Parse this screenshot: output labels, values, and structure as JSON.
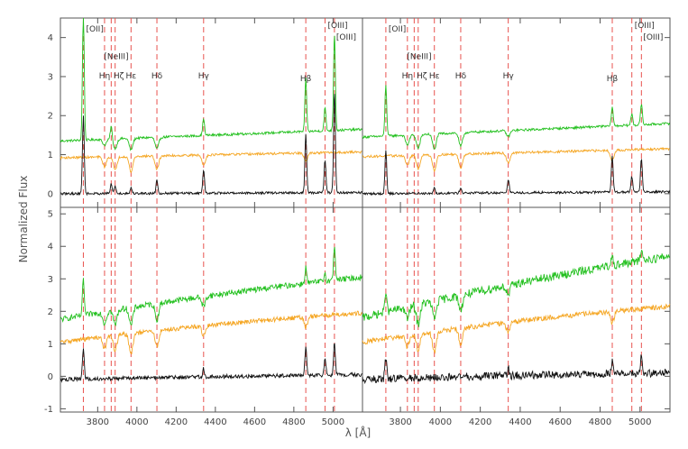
{
  "chart_data": {
    "type": "line",
    "xlabel": "λ [Å]",
    "ylabel": "Normalized Flux",
    "xlim": [
      3610,
      5150
    ],
    "x_ticks": [
      3800,
      4000,
      4200,
      4400,
      4600,
      4800,
      5000
    ],
    "top_row_ylim": [
      -0.35,
      4.5
    ],
    "top_row_y_ticks": [
      0,
      1,
      2,
      3,
      4
    ],
    "bottom_row_ylim": [
      -1.1,
      5.2
    ],
    "bottom_row_y_ticks": [
      -1,
      0,
      1,
      2,
      3,
      4,
      5
    ],
    "colors": {
      "series_green": "#22c01e",
      "series_orange": "#f5a623",
      "series_black": "#111111",
      "emission_line_markers": "#e8534f",
      "axes": "#555555"
    },
    "emission_lines": [
      {
        "label": "[OII]",
        "wavelength": 3727
      },
      {
        "label": "Hη",
        "wavelength": 3835
      },
      {
        "label": "[NeIII]",
        "wavelength": 3869
      },
      {
        "label": "Hζ",
        "wavelength": 3889
      },
      {
        "label": "Hε",
        "wavelength": 3970
      },
      {
        "label": "Hδ",
        "wavelength": 4102
      },
      {
        "label": "Hγ",
        "wavelength": 4340
      },
      {
        "label": "Hβ",
        "wavelength": 4861
      },
      {
        "label": "[OIII]",
        "wavelength": 4959
      },
      {
        "label": "[OIII]",
        "wavelength": 5007
      }
    ],
    "panels": [
      {
        "position": "top-left",
        "series": [
          {
            "color": "#22c01e",
            "baseline": 1.35,
            "slope": 0.3,
            "curve": 0.0,
            "noise": 0.03,
            "emission": {
              "3727": 3.3,
              "3869": 0.35,
              "4340": 0.45,
              "4861": 1.35,
              "4959": 0.6,
              "5007": 2.5
            },
            "absorption": {
              "3835": 0.15,
              "3889": 0.25,
              "3970": 0.3,
              "4102": 0.3
            }
          },
          {
            "color": "#f5a623",
            "baseline": 0.92,
            "slope": 0.15,
            "curve": 0.0,
            "noise": 0.03,
            "emission": {},
            "absorption": {
              "3835": 0.25,
              "3889": 0.35,
              "3970": 0.4,
              "4102": 0.35,
              "4340": 0.25,
              "4861": 0.2
            }
          },
          {
            "color": "#111111",
            "baseline": 0.0,
            "slope": 0.03,
            "curve": 0.0,
            "noise": 0.03,
            "emission": {
              "3727": 2.0,
              "3869": 0.25,
              "3889": 0.2,
              "3970": 0.15,
              "4102": 0.35,
              "4340": 0.6,
              "4861": 1.5,
              "4959": 0.85,
              "5007": 2.6
            },
            "absorption": {}
          }
        ]
      },
      {
        "position": "top-right",
        "series": [
          {
            "color": "#22c01e",
            "baseline": 1.45,
            "slope": 0.35,
            "curve": 0.0,
            "noise": 0.03,
            "emission": {
              "3727": 1.3,
              "4861": 0.5,
              "4959": 0.3,
              "5007": 0.55
            },
            "absorption": {
              "3835": 0.25,
              "3889": 0.35,
              "3970": 0.4,
              "4102": 0.35,
              "4340": 0.15
            }
          },
          {
            "color": "#f5a623",
            "baseline": 0.95,
            "slope": 0.2,
            "curve": 0.0,
            "noise": 0.03,
            "emission": {},
            "absorption": {
              "3835": 0.25,
              "3889": 0.35,
              "3970": 0.4,
              "4102": 0.35,
              "4340": 0.25,
              "4861": 0.25
            }
          },
          {
            "color": "#111111",
            "baseline": 0.0,
            "slope": 0.05,
            "curve": 0.0,
            "noise": 0.03,
            "emission": {
              "3727": 1.1,
              "3970": 0.15,
              "4102": 0.15,
              "4340": 0.35,
              "4861": 0.9,
              "4959": 0.4,
              "5007": 0.85
            },
            "absorption": {}
          }
        ]
      },
      {
        "position": "bottom-left",
        "series": [
          {
            "color": "#22c01e",
            "baseline": 1.75,
            "slope": 1.65,
            "curve": -0.35,
            "noise": 0.09,
            "emission": {
              "3727": 1.1,
              "4861": 0.5,
              "4959": 0.25,
              "5007": 1.1
            },
            "absorption": {
              "3835": 0.35,
              "3889": 0.45,
              "3970": 0.55,
              "4102": 0.5,
              "4340": 0.3
            }
          },
          {
            "color": "#f5a623",
            "baseline": 1.05,
            "slope": 1.2,
            "curve": -0.3,
            "noise": 0.07,
            "emission": {},
            "absorption": {
              "3835": 0.35,
              "3889": 0.45,
              "3970": 0.65,
              "4102": 0.5,
              "4340": 0.3,
              "4861": 0.3
            }
          },
          {
            "color": "#111111",
            "baseline": -0.1,
            "slope": 0.2,
            "curve": -0.05,
            "noise": 0.06,
            "emission": {
              "3727": 0.9,
              "4340": 0.25,
              "4861": 0.9,
              "4959": 0.55,
              "5007": 1.0
            },
            "absorption": {}
          }
        ]
      },
      {
        "position": "bottom-right",
        "series": [
          {
            "color": "#22c01e",
            "baseline": 1.8,
            "slope": 2.3,
            "curve": -0.4,
            "noise": 0.13,
            "emission": {
              "3727": 0.7,
              "4861": 0.4,
              "5007": 0.4
            },
            "absorption": {
              "3835": 0.35,
              "3889": 0.6,
              "3970": 0.55,
              "4102": 0.45,
              "4340": 0.3
            }
          },
          {
            "color": "#f5a623",
            "baseline": 1.05,
            "slope": 1.45,
            "curve": -0.35,
            "noise": 0.08,
            "emission": {},
            "absorption": {
              "3835": 0.35,
              "3889": 0.5,
              "3970": 0.65,
              "4102": 0.5,
              "4340": 0.3,
              "4861": 0.35
            }
          },
          {
            "color": "#111111",
            "baseline": -0.1,
            "slope": 0.3,
            "curve": -0.1,
            "noise": 0.12,
            "emission": {
              "3727": 0.65,
              "4340": 0.2,
              "4861": 0.4,
              "5007": 0.55
            },
            "absorption": {}
          }
        ]
      }
    ]
  }
}
